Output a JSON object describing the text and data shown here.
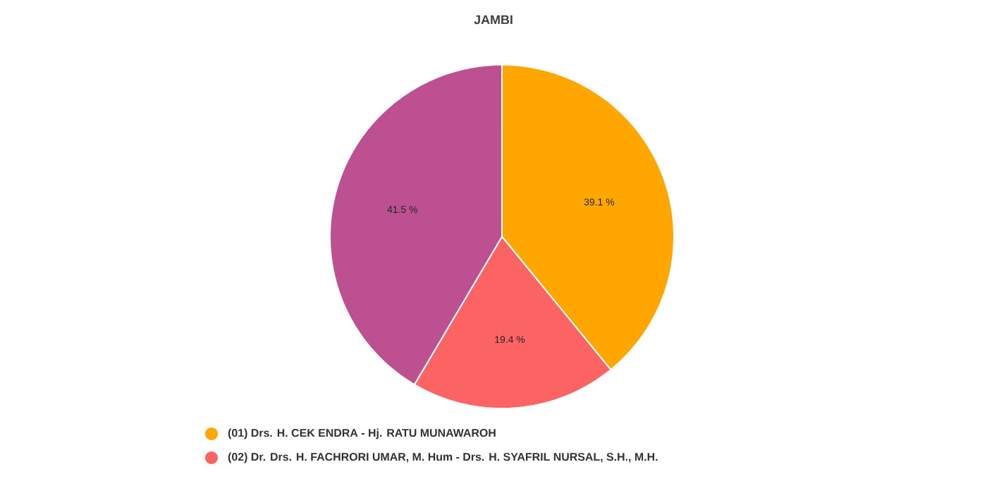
{
  "chart_data": {
    "type": "pie",
    "title": "JAMBI",
    "categories": [
      "(01) Drs. H. CEK ENDRA - Hj. RATU MUNAWAROH",
      "(02) Dr. Drs. H. FACHRORI UMAR, M. Hum - Drs. H. SYAFRIL NURSAL, S.H., M.H.",
      null
    ],
    "values": [
      39.1,
      19.4,
      41.5
    ],
    "value_labels": [
      "39.1 %",
      "19.4 %",
      "41.5 %"
    ],
    "colors": [
      "#ffa600",
      "#fc6363",
      "#bc5090"
    ],
    "legend": "bottom"
  }
}
